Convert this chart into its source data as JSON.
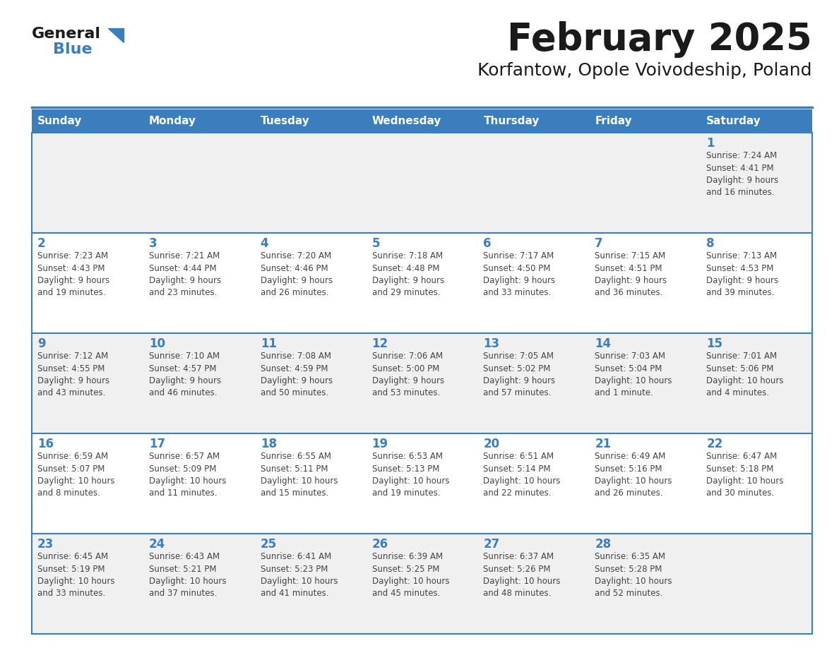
{
  "title": "February 2025",
  "subtitle": "Korfantow, Opole Voivodeship, Poland",
  "days_of_week": [
    "Sunday",
    "Monday",
    "Tuesday",
    "Wednesday",
    "Thursday",
    "Friday",
    "Saturday"
  ],
  "header_bg": "#3A7EBD",
  "header_text": "#FFFFFF",
  "cell_bg_odd": "#F0F0F0",
  "cell_bg_even": "#FFFFFF",
  "day_number_color": "#3A7EBD",
  "text_color": "#444444",
  "line_color": "#3A7EBD",
  "title_color": "#1a1a1a",
  "subtitle_color": "#1a1a1a",
  "logo_general_color": "#1a1a1a",
  "logo_blue_color": "#3A7EBD",
  "calendar_data": [
    [
      null,
      null,
      null,
      null,
      null,
      null,
      {
        "day": "1",
        "sunrise": "7:24 AM",
        "sunset": "4:41 PM",
        "daylight": "9 hours\nand 16 minutes."
      }
    ],
    [
      {
        "day": "2",
        "sunrise": "7:23 AM",
        "sunset": "4:43 PM",
        "daylight": "9 hours\nand 19 minutes."
      },
      {
        "day": "3",
        "sunrise": "7:21 AM",
        "sunset": "4:44 PM",
        "daylight": "9 hours\nand 23 minutes."
      },
      {
        "day": "4",
        "sunrise": "7:20 AM",
        "sunset": "4:46 PM",
        "daylight": "9 hours\nand 26 minutes."
      },
      {
        "day": "5",
        "sunrise": "7:18 AM",
        "sunset": "4:48 PM",
        "daylight": "9 hours\nand 29 minutes."
      },
      {
        "day": "6",
        "sunrise": "7:17 AM",
        "sunset": "4:50 PM",
        "daylight": "9 hours\nand 33 minutes."
      },
      {
        "day": "7",
        "sunrise": "7:15 AM",
        "sunset": "4:51 PM",
        "daylight": "9 hours\nand 36 minutes."
      },
      {
        "day": "8",
        "sunrise": "7:13 AM",
        "sunset": "4:53 PM",
        "daylight": "9 hours\nand 39 minutes."
      }
    ],
    [
      {
        "day": "9",
        "sunrise": "7:12 AM",
        "sunset": "4:55 PM",
        "daylight": "9 hours\nand 43 minutes."
      },
      {
        "day": "10",
        "sunrise": "7:10 AM",
        "sunset": "4:57 PM",
        "daylight": "9 hours\nand 46 minutes."
      },
      {
        "day": "11",
        "sunrise": "7:08 AM",
        "sunset": "4:59 PM",
        "daylight": "9 hours\nand 50 minutes."
      },
      {
        "day": "12",
        "sunrise": "7:06 AM",
        "sunset": "5:00 PM",
        "daylight": "9 hours\nand 53 minutes."
      },
      {
        "day": "13",
        "sunrise": "7:05 AM",
        "sunset": "5:02 PM",
        "daylight": "9 hours\nand 57 minutes."
      },
      {
        "day": "14",
        "sunrise": "7:03 AM",
        "sunset": "5:04 PM",
        "daylight": "10 hours\nand 1 minute."
      },
      {
        "day": "15",
        "sunrise": "7:01 AM",
        "sunset": "5:06 PM",
        "daylight": "10 hours\nand 4 minutes."
      }
    ],
    [
      {
        "day": "16",
        "sunrise": "6:59 AM",
        "sunset": "5:07 PM",
        "daylight": "10 hours\nand 8 minutes."
      },
      {
        "day": "17",
        "sunrise": "6:57 AM",
        "sunset": "5:09 PM",
        "daylight": "10 hours\nand 11 minutes."
      },
      {
        "day": "18",
        "sunrise": "6:55 AM",
        "sunset": "5:11 PM",
        "daylight": "10 hours\nand 15 minutes."
      },
      {
        "day": "19",
        "sunrise": "6:53 AM",
        "sunset": "5:13 PM",
        "daylight": "10 hours\nand 19 minutes."
      },
      {
        "day": "20",
        "sunrise": "6:51 AM",
        "sunset": "5:14 PM",
        "daylight": "10 hours\nand 22 minutes."
      },
      {
        "day": "21",
        "sunrise": "6:49 AM",
        "sunset": "5:16 PM",
        "daylight": "10 hours\nand 26 minutes."
      },
      {
        "day": "22",
        "sunrise": "6:47 AM",
        "sunset": "5:18 PM",
        "daylight": "10 hours\nand 30 minutes."
      }
    ],
    [
      {
        "day": "23",
        "sunrise": "6:45 AM",
        "sunset": "5:19 PM",
        "daylight": "10 hours\nand 33 minutes."
      },
      {
        "day": "24",
        "sunrise": "6:43 AM",
        "sunset": "5:21 PM",
        "daylight": "10 hours\nand 37 minutes."
      },
      {
        "day": "25",
        "sunrise": "6:41 AM",
        "sunset": "5:23 PM",
        "daylight": "10 hours\nand 41 minutes."
      },
      {
        "day": "26",
        "sunrise": "6:39 AM",
        "sunset": "5:25 PM",
        "daylight": "10 hours\nand 45 minutes."
      },
      {
        "day": "27",
        "sunrise": "6:37 AM",
        "sunset": "5:26 PM",
        "daylight": "10 hours\nand 48 minutes."
      },
      {
        "day": "28",
        "sunrise": "6:35 AM",
        "sunset": "5:28 PM",
        "daylight": "10 hours\nand 52 minutes."
      },
      null
    ]
  ]
}
